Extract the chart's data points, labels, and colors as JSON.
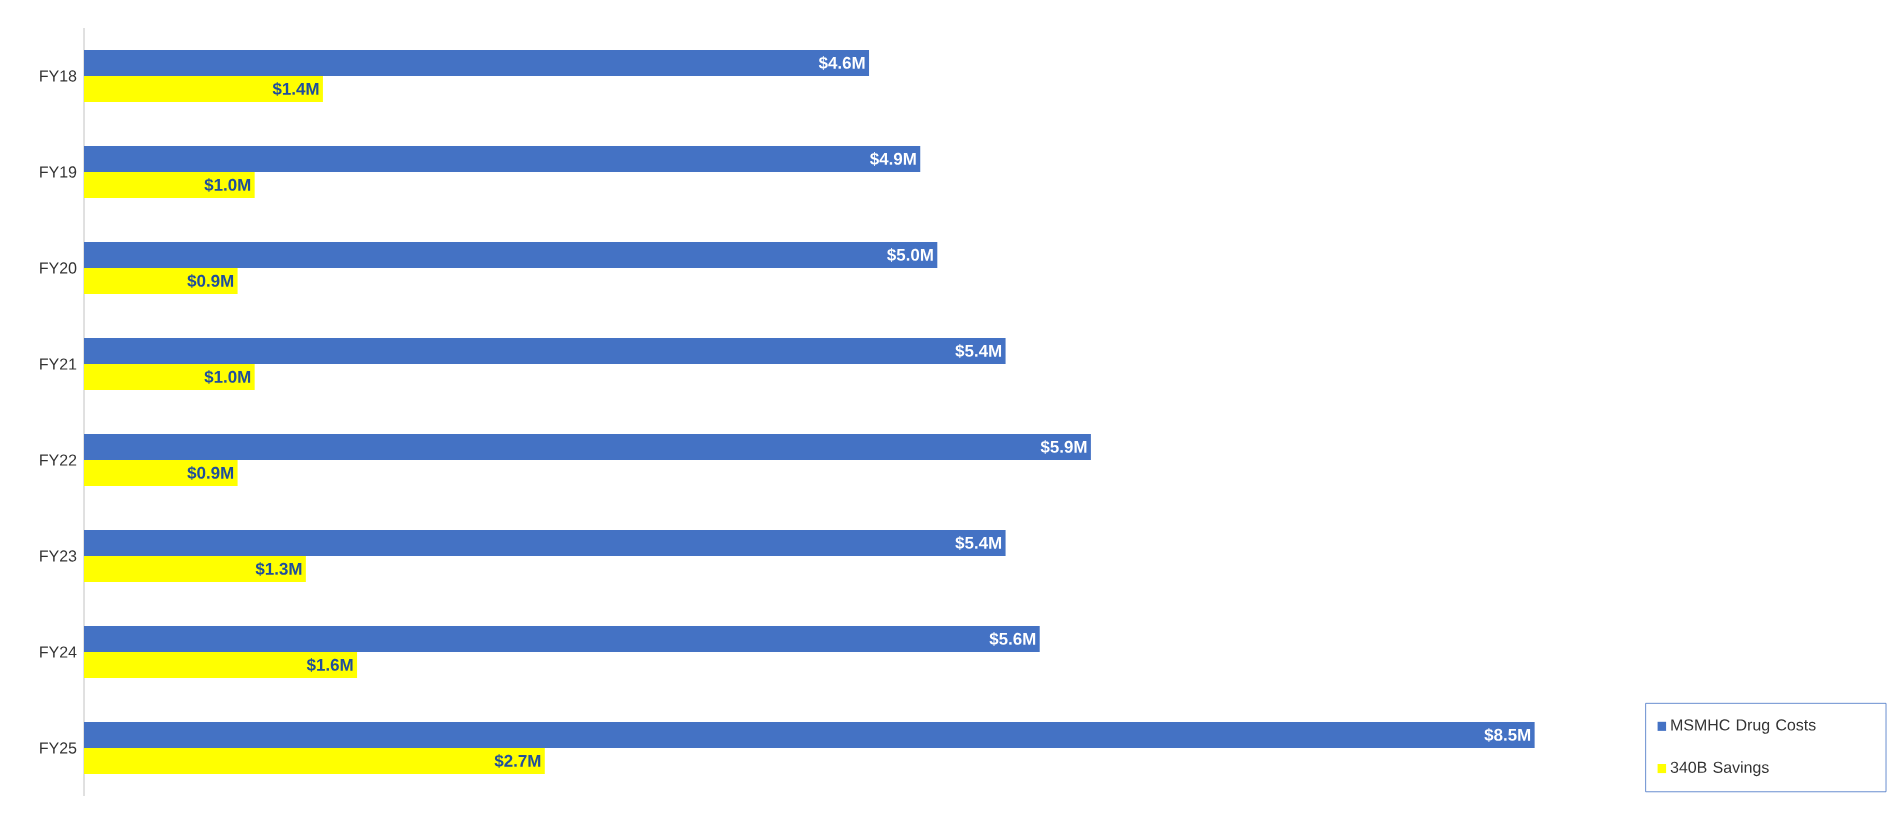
{
  "chart_data": {
    "type": "bar",
    "orientation": "horizontal",
    "categories": [
      "FY18",
      "FY19",
      "FY20",
      "FY21",
      "FY22",
      "FY23",
      "FY24",
      "FY25"
    ],
    "series": [
      {
        "name": "MSMHC Drug Costs",
        "color": "#4472c4",
        "values": [
          4.6,
          4.9,
          5.0,
          5.4,
          5.9,
          5.4,
          5.6,
          8.5
        ],
        "value_labels": [
          "$4.6M",
          "$4.9M",
          "$5.0M",
          "$5.4M",
          "$5.9M",
          "$5.4M",
          "$5.6M",
          "$8.5M"
        ]
      },
      {
        "name": "340B Savings",
        "color": "#ffff00",
        "values": [
          1.4,
          1.0,
          0.9,
          1.0,
          0.9,
          1.3,
          1.6,
          2.7
        ],
        "value_labels": [
          "$1.4M",
          "$1.0M",
          "$0.9M",
          "$1.0M",
          "$0.9M",
          "$1.3M",
          "$1.6M",
          "$2.7M"
        ]
      }
    ],
    "legend": "bottom right"
  }
}
